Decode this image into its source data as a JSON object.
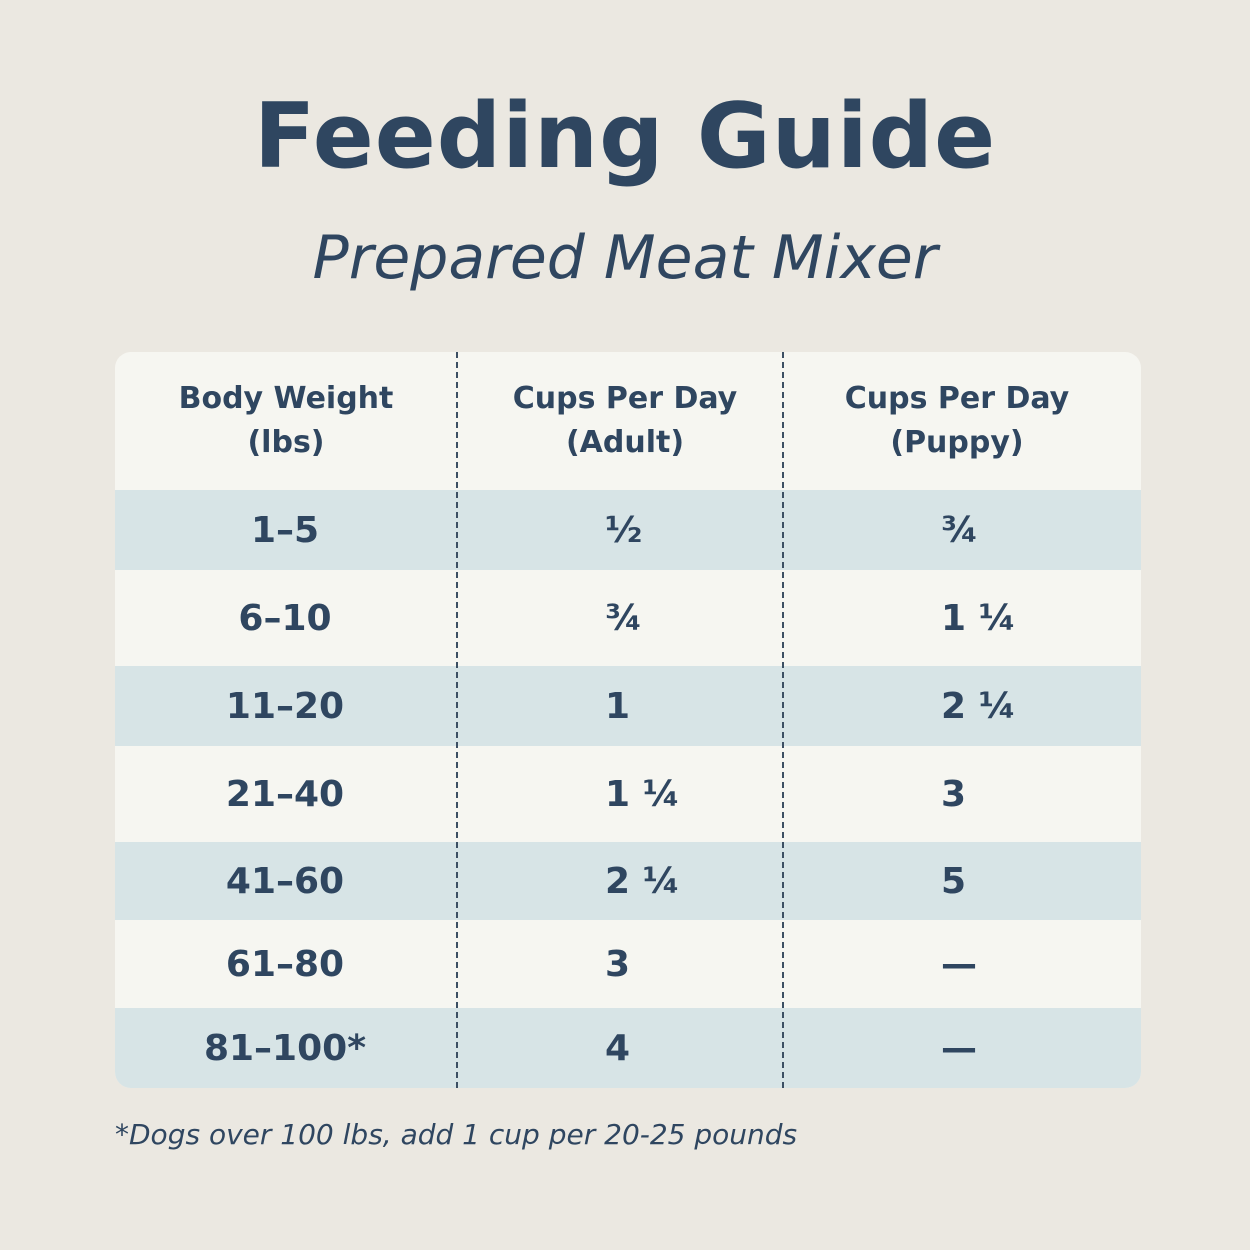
{
  "title": "Feeding Guide",
  "subtitle": "Prepared Meat Mixer",
  "table": {
    "headers": [
      {
        "line1": "Body Weight",
        "line2": "(lbs)"
      },
      {
        "line1": "Cups Per Day",
        "line2": "(Adult)"
      },
      {
        "line1": "Cups Per Day",
        "line2": "(Puppy)"
      }
    ],
    "rows": [
      {
        "weight": "1–5",
        "adult": "½",
        "puppy": "¾"
      },
      {
        "weight": "6–10",
        "adult": "¾",
        "puppy": "1 ¼"
      },
      {
        "weight": "11–20",
        "adult": "1",
        "puppy": "2 ¼"
      },
      {
        "weight": "21–40",
        "adult": "1 ¼",
        "puppy": "3"
      },
      {
        "weight": "41–60",
        "adult": "2 ¼",
        "puppy": "5"
      },
      {
        "weight": "61–80",
        "adult": "3",
        "puppy": "—"
      },
      {
        "weight": "81–100*",
        "adult": "4",
        "puppy": "—"
      }
    ]
  },
  "footnote": "*Dogs over 100 lbs, add 1 cup per 20-25 pounds",
  "colors": {
    "text": "#2f4660",
    "background": "#ebe8e1",
    "row_shaded": "#d7e4e6",
    "row_plain": "#f6f6f1"
  }
}
